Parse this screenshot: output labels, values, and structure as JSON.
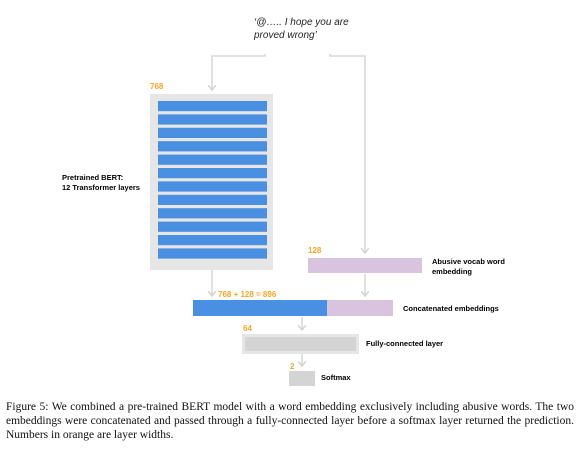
{
  "input": {
    "quote_line1": "‘@….. I hope you are",
    "quote_line2": "proved wrong’"
  },
  "bert": {
    "width_label": "768",
    "title_line1": "Pretrained BERT:",
    "title_line2": "12 Transformer layers",
    "layer_count": 12
  },
  "abusive_vocab": {
    "width_label": "128",
    "label_line1": "Abusive vocab word",
    "label_line2": "embedding"
  },
  "concat": {
    "width_label": "768 + 128 = 896",
    "label": "Concatenated embeddings"
  },
  "fc": {
    "width_label": "64",
    "label": "Fully-connected layer"
  },
  "softmax": {
    "width_label": "2",
    "label": "Softmax"
  },
  "caption": "Figure 5: We combined a pre-trained BERT model with a word embedding exclusively including abusive words. The two embeddings were concatenated and passed through a fully-connected layer before a softmax layer returned the prediction. Numbers in orange are layer widths.",
  "colors": {
    "bert_blue": "#4a90e2",
    "bert_bg": "#e6e6e6",
    "purple": "#d9c4e0",
    "gray_layer": "#d4d4d4",
    "orange": "#f5a623",
    "arrow": "#d8d8d8"
  }
}
